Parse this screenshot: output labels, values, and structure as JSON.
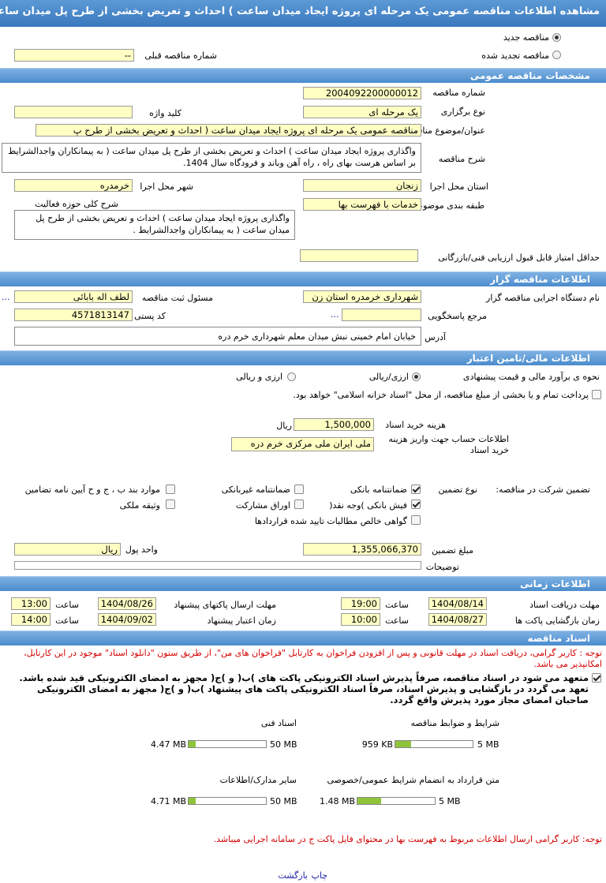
{
  "header": {
    "title": "مشاهده اطلاعات مناقصه عمومی یک مرحله ای پروژه ایجاد میدان ساعت ) احداث و تعریض بخشی از طرح پل میدان ساعت ("
  },
  "tender_type": {
    "new": "مناقصه جدید",
    "renewed": "مناقصه تجدید شده",
    "previous_number_label": "شماره مناقصه قبلی",
    "previous_number": "--"
  },
  "general": {
    "title": "مشخصات مناقصه عمومی",
    "number_label": "شماره مناقصه",
    "number": "2004092200000012",
    "holding_type_label": "نوع برگزاری",
    "holding_type": "یک مرحله ای",
    "keyword_label": "کلید واژه",
    "subject_label": "عنوان/موضوع مناقصه",
    "subject": "مناقصه عمومی یک مرحله ای پروژه ایجاد میدان ساعت ( احداث و تعریض بخشی از طرح پ",
    "description_label": "شرح مناقصه",
    "description": "واگذاری پروژه ایجاد میدان ساعت ) احداث و تعریض بخشی از طرح پل میدان ساعت ( به پیمانکاران واجدالشرایط بر اساس هرست بهای راه ، راه آهن وباند و فرودگاه سال 1404.",
    "province_label": "استان محل اجرا",
    "province": "زنجان",
    "city_label": "شهر محل اجرا",
    "city": "خرمدره",
    "category_label": "طبقه بندی موضوعی",
    "category": "خدمات با فهرست بها",
    "activity_label": "شرح کلی حوزه فعالیت",
    "activity": "واگذاری پروژه ایجاد میدان ساعت ) احداث و تعریض بخشی از طرح پل میدان ساعت ( به پیمانکاران واجدالشرایط .",
    "min_score_label": "حداقل امتیاز قابل قبول ارزیابی فنی/بازرگانی"
  },
  "organizer": {
    "title": "اطلاعات مناقصه گزار",
    "executor_label": "نام دستگاه اجرایی مناقصه گزار",
    "executor": "شهرداری خرمدره استان زن",
    "responsible_label": "مسئول ثبت مناقصه",
    "responsible": "لطف اله بابائی",
    "responsible_more": "...",
    "reference_label": "مرجع پاسخگویی",
    "reference_more": "...",
    "postal_code_label": "کد پستی",
    "postal_code": "4571813147",
    "address_label": "آدرس",
    "address": "خیابان امام خمینی نبش میدان معلم شهرداری خرم دره"
  },
  "finance": {
    "title": "اطلاعات مالی/تامین اعتبار",
    "estimate_label": "نحوه ی برآورد مالی و قیمت پیشنهادی",
    "estimate_option_1": "ارزی/ریالی",
    "estimate_option_2": "ارزی و ریالی",
    "treasury_note": "پرداخت تمام و یا بخشی از مبلغ مناقصه، از محل \"اسناد خزانه اسلامی\" خواهد بود.",
    "doc_fee_label": "هزینه خرید اسناد",
    "doc_fee": "1,500,000",
    "doc_fee_unit": "ریال",
    "account_label": "اطلاعات حساب جهت واریز هزینه خرید اسناد",
    "account": "ملی ایران ملی مرکزی خرم دره",
    "guarantee_label": "تضمین شرکت در مناقصه:",
    "guarantee_type_label": "نوع تضمین",
    "guarantee_types": [
      "ضمانتنامه بانکی",
      "ضمانتنامه غیربانکی",
      "موارد بند ب ، ج و ح آیین نامه تضامین",
      "فیش بانکی )وجه نقد(",
      "اوراق مشارکت",
      "وثیقه ملکی",
      "گواهی خالص مطالبات تایید شده قراردادها"
    ],
    "guarantee_amount_label": "مبلغ تضمین",
    "guarantee_amount": "1,355,066,370",
    "currency_label": "واحد پول",
    "currency": "ریال",
    "notes_label": "توضیحات"
  },
  "schedule": {
    "title": "اطلاعات زمانی",
    "time_label": "ساعت",
    "rows": [
      {
        "label": "مهلت دریافت اسناد",
        "date": "1404/08/14",
        "time": "19:00"
      },
      {
        "label": "مهلت ارسال پاکتهای پیشنهاد",
        "date": "1404/08/26",
        "time": "13:00"
      },
      {
        "label": "زمان بازگشایی پاکت ها",
        "date": "1404/08/27",
        "time": "10:00"
      },
      {
        "label": "زمان اعتبار پیشنهاد",
        "date": "1404/09/02",
        "time": "14:00"
      }
    ]
  },
  "documents": {
    "title": "اسناد مناقصه",
    "note": "توجه : کاربر گرامی، دریافت اسناد در مهلت قانونی و پس از افزودن فراخوان به کارتابل \"فراخوان های من\"، از طریق ستون \"دانلود اسناد\" موجود در این کارتابل، امکانپذیر می باشد.",
    "commitment": "متعهد می شود در اسناد مناقصه، صرفاً پذیرش اسناد الکترونیکی پاکت های )ب( و )ج( مجهز به امضای الکترونیکی قید شده باشد. تعهد می گردد در بازگشایی و پذیرش اسناد، صرفاً اسناد الکترونیکی پاکت های پیشنهاد )ب( و )ج( مجهز به امضای الکترونیکی صاحبان امضای مجاز مورد پذیرش واقع گردد.",
    "files": [
      {
        "label": "شرایط و ضوابط مناقصه",
        "size": "959 KB",
        "max": "5 MB"
      },
      {
        "label": "اسناد فنی",
        "size": "4.47 MB",
        "max": "50 MB"
      },
      {
        "label": "متن قرارداد به انضمام شرایط عمومی/خصوصی",
        "size": "1.48 MB",
        "max": "5 MB"
      },
      {
        "label": "سایر مدارک/اطلاعات",
        "size": "4.71 MB",
        "max": "50 MB"
      }
    ]
  },
  "footer": {
    "note": "توجه: کاربر گرامی ارسال اطلاعات مربوط به فهرست بها در محتوای فایل پاکت ج در سامانه اجرایی میباشد.",
    "links": [
      "چاپ",
      "بازگشت"
    ]
  }
}
